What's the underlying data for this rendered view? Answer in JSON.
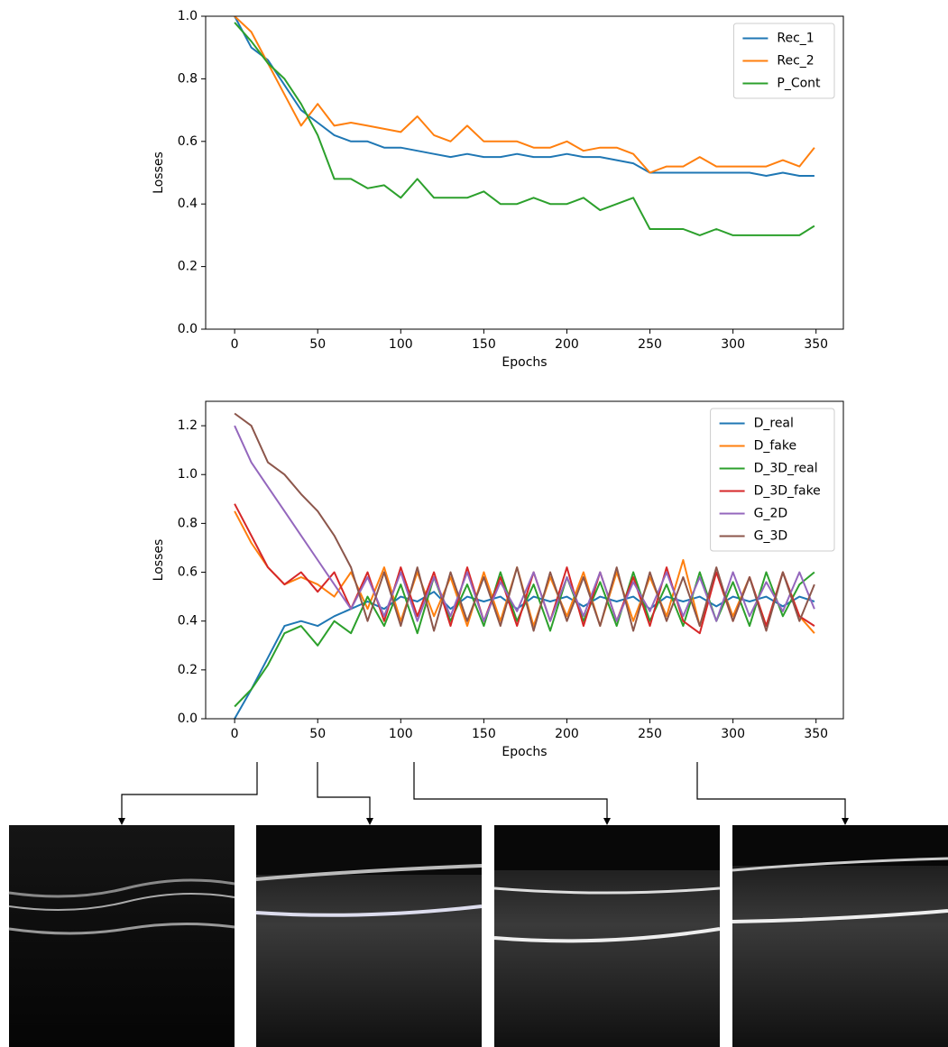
{
  "chart_data": [
    {
      "type": "line",
      "x_label": "Epochs",
      "y_label": "Losses",
      "x": [
        0,
        10,
        20,
        30,
        40,
        50,
        60,
        70,
        80,
        90,
        100,
        110,
        120,
        130,
        140,
        150,
        160,
        170,
        180,
        190,
        200,
        210,
        220,
        230,
        240,
        250,
        260,
        270,
        280,
        290,
        300,
        310,
        320,
        330,
        340,
        349
      ],
      "xlim": [
        -17.45,
        366.45
      ],
      "xticks": [
        0,
        50,
        100,
        150,
        200,
        250,
        300,
        350
      ],
      "ylim": [
        0,
        1
      ],
      "yticks": [
        {
          "value": 0,
          "label": "0.0"
        },
        0.2,
        0.4,
        0.6,
        0.8,
        {
          "value": 1,
          "label": "1.0"
        }
      ],
      "grid": false,
      "legend": "upper right",
      "series": [
        {
          "name": "Rec_1",
          "color": "#1f77b4",
          "values": [
            1.0,
            0.9,
            0.86,
            0.78,
            0.7,
            0.66,
            0.62,
            0.6,
            0.6,
            0.58,
            0.58,
            0.57,
            0.56,
            0.55,
            0.56,
            0.55,
            0.55,
            0.56,
            0.55,
            0.55,
            0.56,
            0.55,
            0.55,
            0.54,
            0.53,
            0.5,
            0.5,
            0.5,
            0.5,
            0.5,
            0.5,
            0.5,
            0.49,
            0.5,
            0.49,
            0.49
          ]
        },
        {
          "name": "Rec_2",
          "color": "#ff7f0e",
          "values": [
            1.0,
            0.95,
            0.85,
            0.75,
            0.65,
            0.72,
            0.65,
            0.66,
            0.65,
            0.64,
            0.63,
            0.68,
            0.62,
            0.6,
            0.65,
            0.6,
            0.6,
            0.6,
            0.58,
            0.58,
            0.6,
            0.57,
            0.58,
            0.58,
            0.56,
            0.5,
            0.52,
            0.52,
            0.55,
            0.52,
            0.52,
            0.52,
            0.52,
            0.54,
            0.52,
            0.58
          ]
        },
        {
          "name": "P_Cont",
          "color": "#2ca02c",
          "values": [
            0.98,
            0.92,
            0.85,
            0.8,
            0.72,
            0.62,
            0.48,
            0.48,
            0.45,
            0.46,
            0.42,
            0.48,
            0.42,
            0.42,
            0.42,
            0.44,
            0.4,
            0.4,
            0.42,
            0.4,
            0.4,
            0.42,
            0.38,
            0.4,
            0.42,
            0.32,
            0.32,
            0.32,
            0.3,
            0.32,
            0.3,
            0.3,
            0.3,
            0.3,
            0.3,
            0.33
          ]
        }
      ]
    },
    {
      "type": "line",
      "x_label": "Epochs",
      "y_label": "Losses",
      "x": [
        0,
        10,
        20,
        30,
        40,
        50,
        60,
        70,
        80,
        90,
        100,
        110,
        120,
        130,
        140,
        150,
        160,
        170,
        180,
        190,
        200,
        210,
        220,
        230,
        240,
        250,
        260,
        270,
        280,
        290,
        300,
        310,
        320,
        330,
        340,
        349
      ],
      "xlim": [
        -17.45,
        366.45
      ],
      "xticks": [
        0,
        50,
        100,
        150,
        200,
        250,
        300,
        350
      ],
      "ylim": [
        0,
        1.3
      ],
      "yticks": [
        {
          "value": 0,
          "label": "0.0"
        },
        0.2,
        0.4,
        0.6,
        0.8,
        {
          "value": 1,
          "label": "1.0"
        },
        1.2
      ],
      "grid": false,
      "legend": "upper right",
      "series": [
        {
          "name": "D_real",
          "color": "#1f77b4",
          "values": [
            0.0,
            0.12,
            0.25,
            0.38,
            0.4,
            0.38,
            0.42,
            0.45,
            0.48,
            0.45,
            0.5,
            0.48,
            0.52,
            0.45,
            0.5,
            0.48,
            0.5,
            0.45,
            0.5,
            0.48,
            0.5,
            0.46,
            0.5,
            0.48,
            0.5,
            0.45,
            0.5,
            0.48,
            0.5,
            0.46,
            0.5,
            0.48,
            0.5,
            0.46,
            0.5,
            0.48
          ]
        },
        {
          "name": "D_fake",
          "color": "#ff7f0e",
          "values": [
            0.85,
            0.72,
            0.62,
            0.55,
            0.58,
            0.55,
            0.5,
            0.6,
            0.45,
            0.62,
            0.4,
            0.6,
            0.42,
            0.58,
            0.38,
            0.6,
            0.4,
            0.62,
            0.38,
            0.58,
            0.42,
            0.6,
            0.38,
            0.6,
            0.4,
            0.58,
            0.42,
            0.65,
            0.38,
            0.6,
            0.42,
            0.58,
            0.38,
            0.6,
            0.42,
            0.35
          ]
        },
        {
          "name": "D_3D_real",
          "color": "#2ca02c",
          "values": [
            0.05,
            0.12,
            0.22,
            0.35,
            0.38,
            0.3,
            0.4,
            0.35,
            0.5,
            0.38,
            0.55,
            0.35,
            0.58,
            0.4,
            0.55,
            0.38,
            0.6,
            0.4,
            0.55,
            0.36,
            0.58,
            0.4,
            0.56,
            0.38,
            0.6,
            0.4,
            0.55,
            0.38,
            0.6,
            0.4,
            0.56,
            0.38,
            0.6,
            0.42,
            0.55,
            0.6
          ]
        },
        {
          "name": "D_3D_fake",
          "color": "#d62728",
          "values": [
            0.88,
            0.75,
            0.62,
            0.55,
            0.6,
            0.52,
            0.6,
            0.45,
            0.6,
            0.4,
            0.62,
            0.42,
            0.6,
            0.38,
            0.62,
            0.4,
            0.58,
            0.38,
            0.6,
            0.4,
            0.62,
            0.38,
            0.6,
            0.4,
            0.58,
            0.38,
            0.62,
            0.4,
            0.35,
            0.6,
            0.4,
            0.58,
            0.38,
            0.6,
            0.42,
            0.38
          ]
        },
        {
          "name": "G_2D",
          "color": "#9467bd",
          "values": [
            1.2,
            1.05,
            0.95,
            0.85,
            0.75,
            0.65,
            0.55,
            0.45,
            0.58,
            0.42,
            0.6,
            0.4,
            0.58,
            0.42,
            0.6,
            0.4,
            0.56,
            0.44,
            0.6,
            0.4,
            0.58,
            0.42,
            0.6,
            0.4,
            0.56,
            0.44,
            0.6,
            0.42,
            0.58,
            0.4,
            0.6,
            0.42,
            0.56,
            0.44,
            0.6,
            0.45
          ]
        },
        {
          "name": "G_3D",
          "color": "#8c564b",
          "values": [
            1.25,
            1.2,
            1.05,
            1.0,
            0.92,
            0.85,
            0.75,
            0.62,
            0.4,
            0.6,
            0.38,
            0.62,
            0.36,
            0.6,
            0.4,
            0.58,
            0.38,
            0.62,
            0.36,
            0.6,
            0.4,
            0.58,
            0.38,
            0.62,
            0.36,
            0.6,
            0.4,
            0.58,
            0.38,
            0.62,
            0.4,
            0.58,
            0.36,
            0.6,
            0.4,
            0.55
          ]
        }
      ]
    }
  ]
}
